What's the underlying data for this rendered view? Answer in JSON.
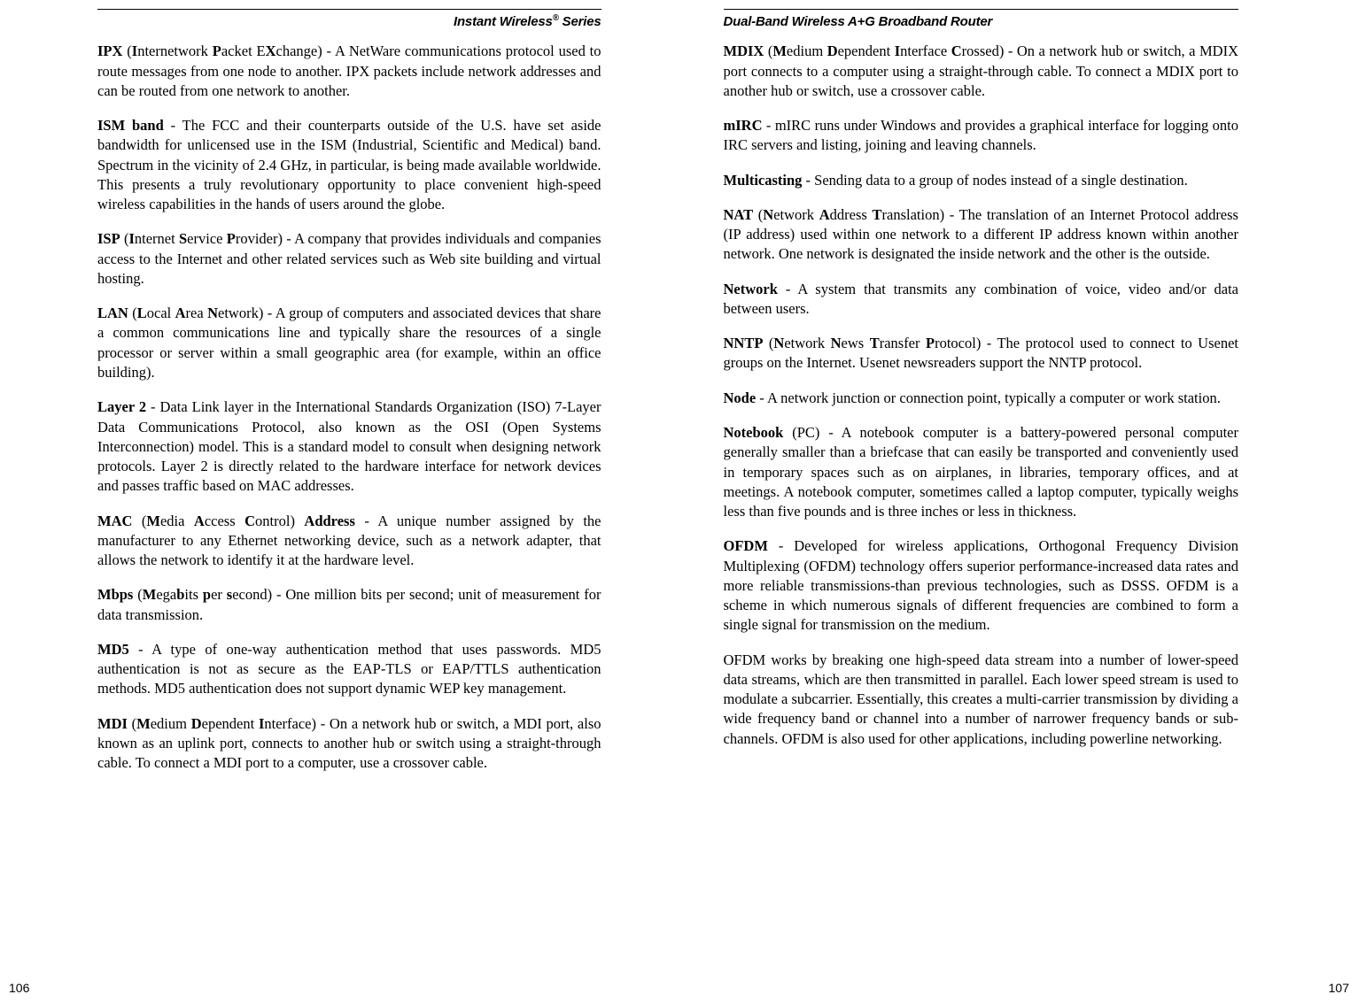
{
  "left": {
    "header": "Instant Wireless® Series",
    "page_number": "106",
    "entries": [
      {
        "term_html": "<b>IPX</b> (<b>I</b>nternetwork <b>P</b>acket E<b>X</b>change)",
        "def": " - A NetWare communications protocol used to route messages from one node to another. IPX packets include network addresses and can be routed from one network to another."
      },
      {
        "term_html": "<b>ISM band</b>",
        "def": " - The FCC and their counterparts outside of the U.S. have set aside bandwidth for unlicensed use in the ISM (Industrial, Scientific and Medical) band. Spectrum in the vicinity of 2.4 GHz, in particular, is being made available worldwide. This presents a truly revolutionary opportunity to place convenient high-speed wireless capabilities in the hands of users around the globe."
      },
      {
        "term_html": "<b>ISP</b> (<b>I</b>nternet <b>S</b>ervice <b>P</b>rovider)",
        "def": " - A company that provides individuals and companies access to the Internet and other related services such as Web site building and virtual hosting."
      },
      {
        "term_html": "<b>LAN</b> (<b>L</b>ocal <b>A</b>rea <b>N</b>etwork)",
        "def": " - A group of computers and associated devices that share a common communications line and typically share the resources of a single processor or server within a small geographic area (for example, within an office building)."
      },
      {
        "term_html": "<b>Layer 2</b>",
        "def": " - Data Link layer in the International Standards Organization (ISO) 7-Layer Data Communications Protocol, also known as the OSI (Open Systems Interconnection) model. This is a standard model to consult when designing network protocols. Layer 2 is directly related to the hardware interface for network devices and passes traffic based on MAC addresses."
      },
      {
        "term_html": "<b>MAC</b> (<b>M</b>edia <b>A</b>ccess <b>C</b>ontrol) <b>Address</b>",
        "def": " - A unique number assigned by the manufacturer to any Ethernet networking device, such as a network adapter, that allows the network to identify it at the hardware level."
      },
      {
        "term_html": "<b>Mbps</b> (<b>M</b>ega<b>b</b>its <b>p</b>er <b>s</b>econd)",
        "def": " - One million bits per second; unit of measurement for data transmission."
      },
      {
        "term_html": "<b>MD5</b>",
        "def": " - A type of one-way authentication method that uses passwords. MD5 authentication is not as secure as the EAP-TLS or EAP/TTLS authentication methods. MD5 authentication does not support dynamic WEP key management."
      },
      {
        "term_html": "<b>MDI</b> (<b>M</b>edium <b>D</b>ependent <b>I</b>nterface)",
        "def": " - On a network hub or switch, a MDI port, also known as an uplink port, connects to another hub or switch using a straight-through cable. To connect a MDI port to a computer, use a crossover cable."
      }
    ]
  },
  "right": {
    "header": "Dual-Band Wireless A+G Broadband Router",
    "page_number": "107",
    "entries": [
      {
        "term_html": "<b>MDIX</b> (<b>M</b>edium <b>D</b>ependent <b>I</b>nterface <b>C</b>rossed)",
        "def": " - On a network hub or switch, a MDIX port connects to a computer using a straight-through cable. To connect a MDIX port to another hub or switch, use a crossover cable."
      },
      {
        "term_html": "<b>mIRC</b>",
        "def": " - mIRC runs under Windows and provides a graphical interface for logging onto IRC servers and listing, joining and leaving channels."
      },
      {
        "term_html": "<b>Multicasting</b>",
        "def": " - Sending data to a group of nodes instead of a single destination."
      },
      {
        "term_html": "<b>NAT</b> (<b>N</b>etwork <b>A</b>ddress <b>T</b>ranslation)",
        "def": " - The translation of an Internet Protocol address (IP address) used within one network to a different IP address known within another network. One network is designated the inside network and the other is the outside."
      },
      {
        "term_html": "<b>Network</b>",
        "def": " - A system that transmits any combination of voice, video and/or data between users."
      },
      {
        "term_html": "<b>NNTP</b> (<b>N</b>etwork <b>N</b>ews <b>T</b>ransfer <b>P</b>rotocol) ",
        "def": " - The protocol used to connect to Usenet groups on the Internet. Usenet newsreaders support the NNTP protocol."
      },
      {
        "term_html": "<b>Node</b>",
        "def": " - A network junction or connection point, typically a computer or work station."
      },
      {
        "term_html": "<b>Notebook</b> (PC)",
        "def": " - A notebook computer is a battery-powered personal computer generally smaller than a briefcase that can easily be transported and conveniently used in temporary spaces such as on airplanes, in libraries, temporary offices, and at meetings. A notebook computer, sometimes called a laptop computer, typically weighs less than five pounds and is three inches or less in thickness."
      },
      {
        "term_html": "<b>OFDM</b>",
        "def": " - Developed for wireless applications, Orthogonal Frequency Division Multiplexing (OFDM) technology offers superior performance-increased data rates and more reliable transmissions-than previous technologies, such as DSSS. OFDM is a scheme in which numerous signals of different frequencies are combined to form a single signal for transmission on the medium."
      },
      {
        "term_html": "",
        "def": "OFDM works by breaking one high-speed data stream into a number of lower-speed data streams, which are then transmitted in parallel. Each lower speed stream is used to modulate a subcarrier. Essentially, this creates a multi-carrier transmission by dividing a wide frequency band or channel into a number of narrower frequency bands or sub-channels. OFDM is also used for other applications, including powerline networking."
      }
    ]
  }
}
